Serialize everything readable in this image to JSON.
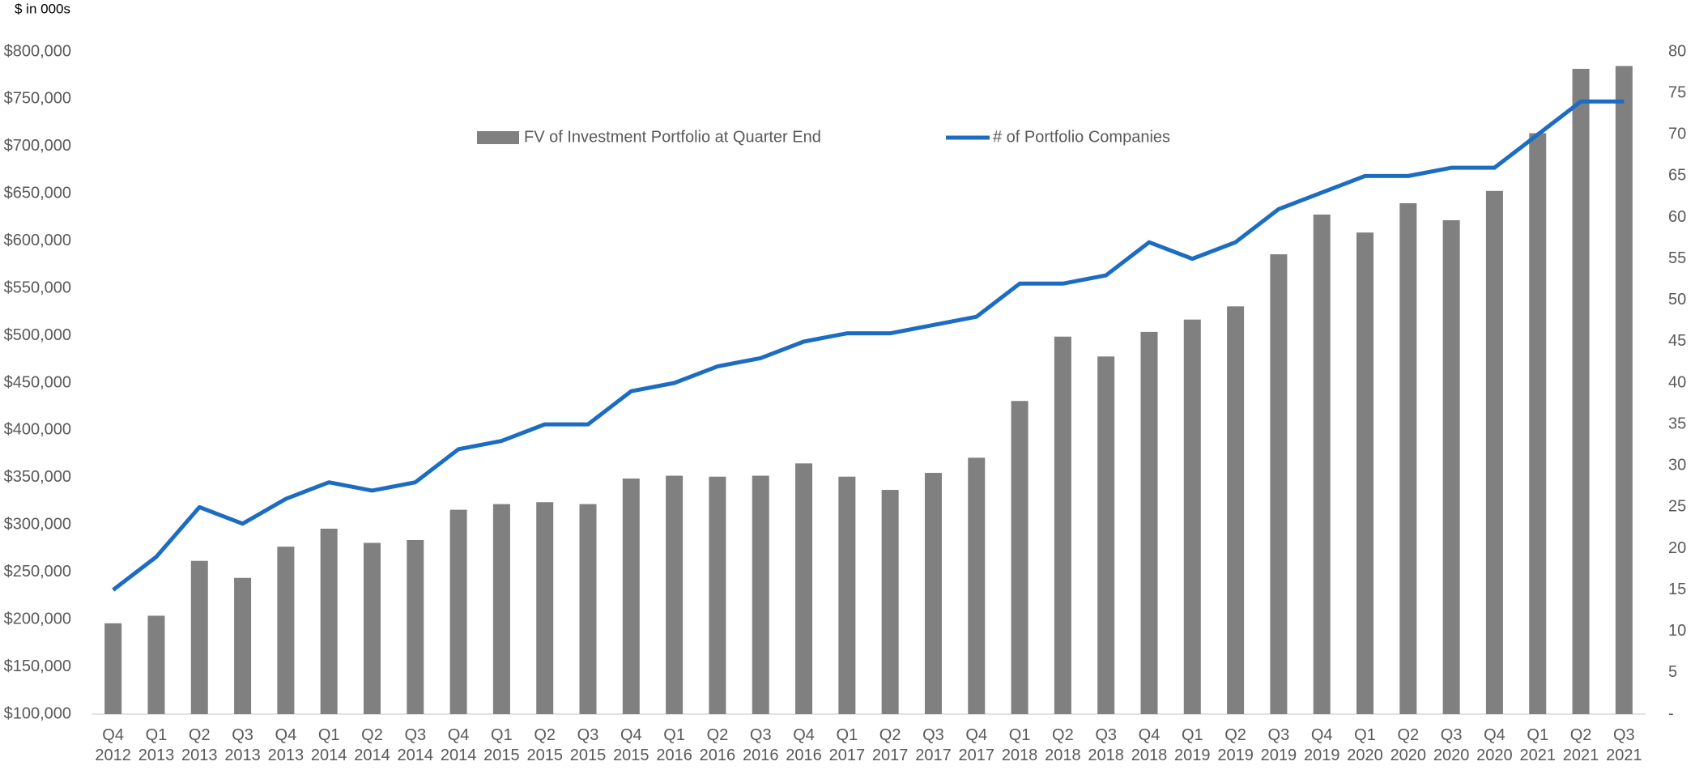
{
  "chart_data": {
    "type": "bar",
    "unit_label": "$ in 000s",
    "categories": [
      "Q4 2012",
      "Q1 2013",
      "Q2 2013",
      "Q3 2013",
      "Q4 2013",
      "Q1 2014",
      "Q2 2014",
      "Q3 2014",
      "Q4 2014",
      "Q1 2015",
      "Q2 2015",
      "Q3 2015",
      "Q4 2015",
      "Q1 2016",
      "Q2 2016",
      "Q3 2016",
      "Q4 2016",
      "Q1 2017",
      "Q2 2017",
      "Q3 2017",
      "Q4 2017",
      "Q1 2018",
      "Q2 2018",
      "Q3 2018",
      "Q4 2018",
      "Q1 2019",
      "Q2 2019",
      "Q3 2019",
      "Q4 2019",
      "Q1 2020",
      "Q2 2020",
      "Q3 2020",
      "Q4 2020",
      "Q1 2021",
      "Q2 2021",
      "Q3 2021"
    ],
    "series": [
      {
        "name": "FV of Investment Portfolio at Quarter End",
        "type": "bar",
        "color": "#808080",
        "values": [
          196000,
          204000,
          262000,
          244000,
          277000,
          296000,
          281000,
          284000,
          316000,
          322000,
          324000,
          322000,
          349000,
          352000,
          351000,
          352000,
          365000,
          351000,
          337000,
          355000,
          371000,
          431000,
          499000,
          478000,
          504000,
          517000,
          531000,
          586000,
          628000,
          609000,
          640000,
          622000,
          653000,
          714000,
          782000,
          785000
        ]
      },
      {
        "name": "# of Portfolio Companies",
        "type": "line",
        "axis": "y2",
        "color": "#1c6dc2",
        "values": [
          15,
          19,
          25,
          23,
          26,
          28,
          27,
          28,
          32,
          33,
          35,
          35,
          39,
          40,
          42,
          43,
          45,
          46,
          46,
          47,
          48,
          52,
          52,
          53,
          57,
          55,
          57,
          61,
          63,
          65,
          65,
          66,
          66,
          70,
          74,
          74
        ]
      }
    ],
    "ylim": [
      100000,
      800000
    ],
    "yticks": [
      {
        "value": 100000,
        "label": "$100,000"
      },
      {
        "value": 150000,
        "label": "$150,000"
      },
      {
        "value": 200000,
        "label": "$200,000"
      },
      {
        "value": 250000,
        "label": "$250,000"
      },
      {
        "value": 300000,
        "label": "$300,000"
      },
      {
        "value": 350000,
        "label": "$350,000"
      },
      {
        "value": 400000,
        "label": "$400,000"
      },
      {
        "value": 450000,
        "label": "$450,000"
      },
      {
        "value": 500000,
        "label": "$500,000"
      },
      {
        "value": 550000,
        "label": "$550,000"
      },
      {
        "value": 600000,
        "label": "$600,000"
      },
      {
        "value": 650000,
        "label": "$650,000"
      },
      {
        "value": 700000,
        "label": "$700,000"
      },
      {
        "value": 750000,
        "label": "$750,000"
      },
      {
        "value": 800000,
        "label": "$800,000"
      }
    ],
    "y2lim": [
      0,
      80
    ],
    "y2ticks": [
      {
        "value": 0,
        "label": "-"
      },
      5,
      10,
      15,
      20,
      25,
      30,
      35,
      40,
      45,
      50,
      55,
      60,
      65,
      70,
      75,
      80
    ],
    "grid": false,
    "legend": "top"
  }
}
